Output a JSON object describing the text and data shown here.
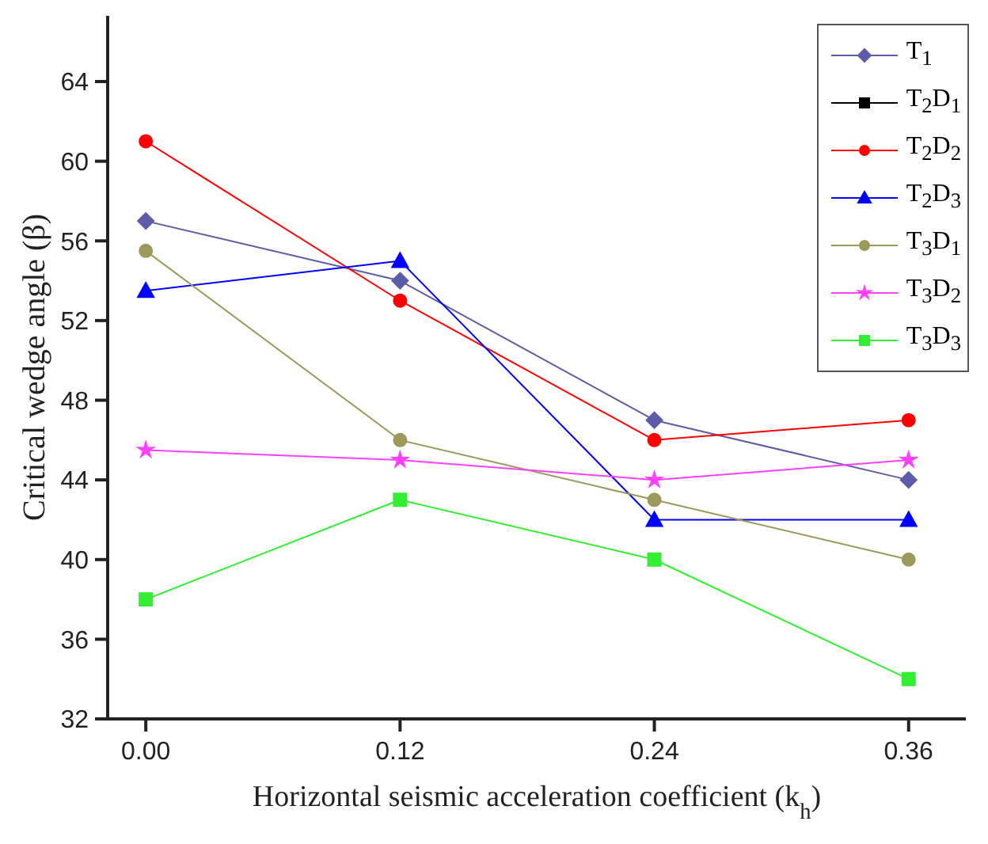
{
  "chart_data": {
    "type": "line",
    "xlabel": "Horizontal seismic acceleration coefficient (k$_{h}$)",
    "ylabel": "Critical wedge angle (β)",
    "x": [
      0,
      0.12,
      0.24,
      0.36
    ],
    "xlim": [
      -0.018,
      0.387
    ],
    "xticks": [
      {
        "value": 0,
        "label": "0.00"
      },
      {
        "value": 0.12,
        "label": "0.12"
      },
      {
        "value": 0.24,
        "label": "0.24"
      },
      {
        "value": 0.36,
        "label": "0.36"
      }
    ],
    "ylim": [
      32,
      67.3
    ],
    "yticks": [
      32,
      36,
      40,
      44,
      48,
      52,
      56,
      60,
      64
    ],
    "legend": "top right",
    "series": [
      {
        "name": "T$_{1}$",
        "color": "#5c5ca8",
        "marker": "diamond",
        "values": [
          57,
          54,
          47,
          44
        ]
      },
      {
        "name": "T$_{2}$D$_{1}$",
        "color": "#000000",
        "marker": "square",
        "values": [
          null,
          null,
          null,
          null
        ]
      },
      {
        "name": "T$_{2}$D$_{2}$",
        "color": "#ff0000",
        "marker": "circle",
        "values": [
          61,
          53,
          46,
          47
        ]
      },
      {
        "name": "T$_{2}$D$_{3}$",
        "color": "#0000ff",
        "marker": "triangle",
        "values": [
          53.5,
          55,
          42,
          42
        ]
      },
      {
        "name": "T$_{3}$D$_{1}$",
        "color": "#9c9a5a",
        "marker": "circle",
        "values": [
          55.5,
          46,
          43,
          40
        ]
      },
      {
        "name": "T$_{3}$D$_{2}$",
        "color": "#ff40ff",
        "marker": "star",
        "values": [
          45.5,
          45,
          44,
          45
        ]
      },
      {
        "name": "T$_{3}$D$_{3}$",
        "color": "#33ee33",
        "marker": "square",
        "values": [
          38,
          43,
          40,
          34
        ]
      }
    ]
  }
}
